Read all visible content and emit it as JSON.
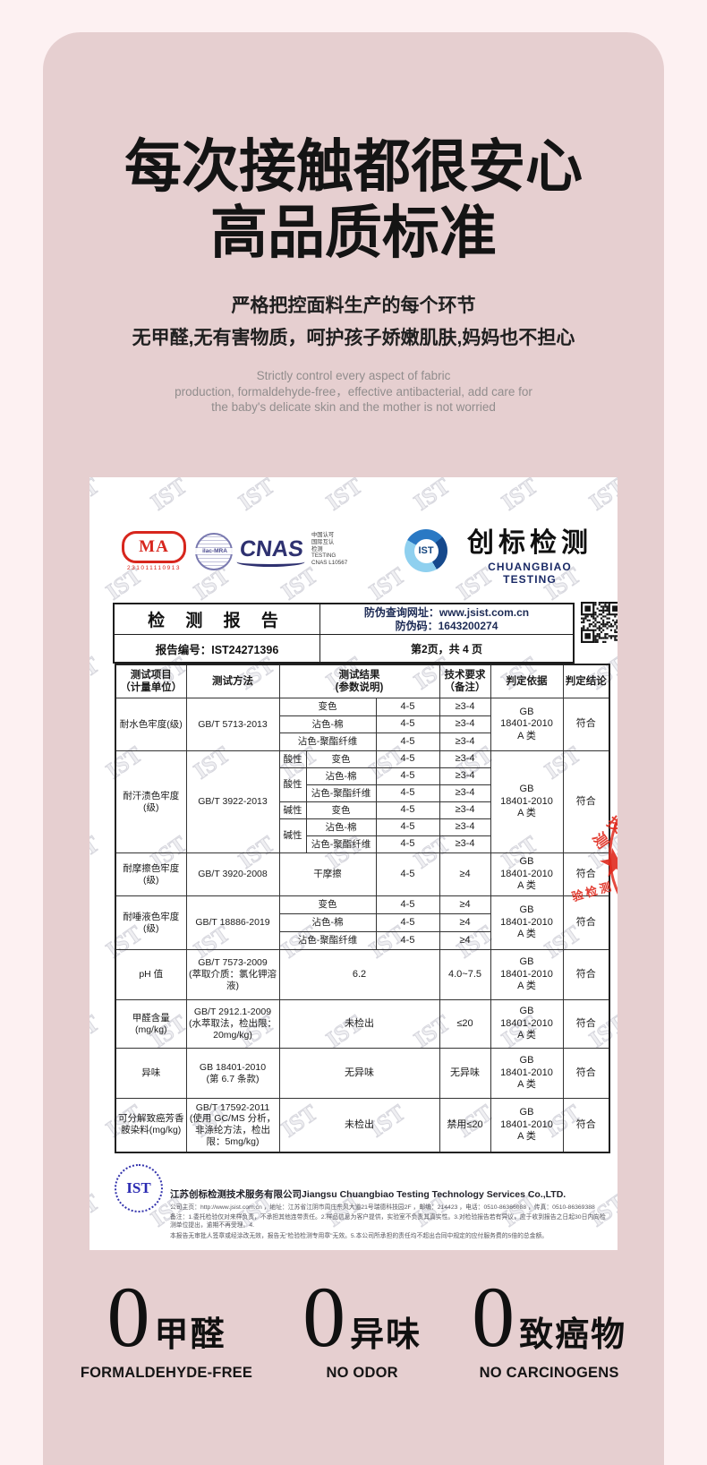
{
  "hero": {
    "title1": "每次接触都很安心",
    "title2": "高品质标准",
    "sub1": "严格把控面料生产的每个环节",
    "sub2": "无甲醛,无有害物质，呵护孩子娇嫩肌肤,妈妈也不担心",
    "en1": "Strictly control every aspect of fabric",
    "en2": "production, formaldehyde-free，effective antibacterial, add care for",
    "en3": "the baby's delicate skin and the mother is not worried"
  },
  "cert": {
    "logos": {
      "cma_label": "MA",
      "cma_number": "231011110913",
      "ilac_label": "ilac-MRA",
      "cnas_label": "CNAS",
      "cnas_side": "中国认可\n国际互认\n检测\nTESTING\nCNAS L10567",
      "ist_label": "IST",
      "brand_cn": "创标检测",
      "brand_en": "CHUANGBIAO TESTING"
    },
    "header_table": {
      "report_title": "检 测 报 告",
      "antifake_line1": "防伪查询网址：www.jsist.com.cn",
      "antifake_line2": "防伪码：1643200274",
      "report_no": "报告编号：IST24271396",
      "page_info": "第2页，共 4 页"
    },
    "table": {
      "h_item": "测试项目\n（计量单位）",
      "h_method": "测试方法",
      "h_result": "测试结果\n(参数说明)",
      "h_req": "技术要求\n（备注）",
      "h_basis": "判定依据",
      "h_concl": "判定结论",
      "basis_gb": "GB\n18401-2010\nA 类",
      "concl": "符合",
      "g0": {
        "item": "耐水色牢度(级)",
        "method": "GB/T 5713-2013",
        "rows": [
          {
            "p": "变色",
            "v": "4-5",
            "r": "≥3-4"
          },
          {
            "p": "沾色-棉",
            "v": "4-5",
            "r": "≥3-4"
          },
          {
            "p": "沾色-聚酯纤维",
            "v": "4-5",
            "r": "≥3-4"
          }
        ]
      },
      "g1": {
        "item": "耐汗渍色牢度\n(级)",
        "method": "GB/T 3922-2013",
        "acid": "酸性",
        "alkali": "碱性",
        "rows": [
          {
            "p": "变色",
            "v": "4-5",
            "r": "≥3-4"
          },
          {
            "p": "沾色-棉",
            "v": "4-5",
            "r": "≥3-4"
          },
          {
            "p": "沾色-聚酯纤维",
            "v": "4-5",
            "r": "≥3-4"
          },
          {
            "p": "变色",
            "v": "4-5",
            "r": "≥3-4"
          },
          {
            "p": "沾色-棉",
            "v": "4-5",
            "r": "≥3-4"
          },
          {
            "p": "沾色-聚酯纤维",
            "v": "4-5",
            "r": "≥3-4"
          }
        ]
      },
      "g2": {
        "item": "耐摩擦色牢度\n(级)",
        "method": "GB/T 3920-2008",
        "p": "干摩擦",
        "v": "4-5",
        "r": "≥4"
      },
      "g3": {
        "item": "耐唾液色牢度\n(级)",
        "method": "GB/T 18886-2019",
        "rows": [
          {
            "p": "变色",
            "v": "4-5",
            "r": "≥4"
          },
          {
            "p": "沾色-棉",
            "v": "4-5",
            "r": "≥4"
          },
          {
            "p": "沾色-聚酯纤维",
            "v": "4-5",
            "r": "≥4"
          }
        ]
      },
      "g4": {
        "item": "pH 值",
        "method": "GB/T 7573-2009\n(萃取介质：氯化钾溶\n液)",
        "v": "6.2",
        "r": "4.0~7.5"
      },
      "g5": {
        "item": "甲醛含量\n(mg/kg)",
        "method": "GB/T 2912.1-2009\n(水萃取法，检出限：\n20mg/kg)",
        "v": "未检出",
        "r": "≤20"
      },
      "g6": {
        "item": "异味",
        "method": "GB 18401-2010\n(第 6.7 条款)",
        "v": "无异味",
        "r": "无异味"
      },
      "g7": {
        "item": "可分解致癌芳香\n胺染料(mg/kg)",
        "method": "GB/T 17592-2011\n(使用 GC/MS 分析，\n非涤纶方法，检出\n限：5mg/kg)",
        "v": "未检出",
        "r": "禁用≤20"
      }
    },
    "stamp": {
      "arc_char1": "测",
      "arc_char2": "技",
      "star": "★",
      "inner_visible": "验检测"
    },
    "footer": {
      "ist_label": "IST",
      "company": "江苏创标检测技术服务有限公司Jiangsu Chuangbiao Testing Technology Services Co.,LTD.",
      "line1": "公司主页：http://www.jsist.com.cn ，地址：江苏省江阴市周庄东风大道21号瑞德科技园2F ，邮编：214423 ，电话：0510-86366088 ，传真：0510-86369388",
      "line2": "备注：1.委托检验仅对来样负责，不承担其他连带责任。2.样品信息为客户提供，实验室不负责其真实性。3.对检验报告若有异议，应于收到报告之日起30日内向检测单位提出，逾期不再受理。4.",
      "line3": "本报告无审批人签章或经涂改无效，报告无\"检验检测专用章\"无效。5.本公司所承担的责任均不超出合同中规定的应付服务费的5倍的总金额。"
    }
  },
  "zeros": {
    "items": [
      {
        "num": "0",
        "cn": "甲醛",
        "en": "FORMALDEHYDE-FREE"
      },
      {
        "num": "0",
        "cn": "异味",
        "en": "NO ODOR"
      },
      {
        "num": "0",
        "cn": "致癌物",
        "en": "NO CARCINOGENS"
      }
    ]
  },
  "colors": {
    "accent_red": "#d7261d",
    "navy": "#1a2a66",
    "stamp_red": "#e02a1e",
    "panel_pink": "#e6cfd0",
    "bg_pink": "#fdf1f2"
  }
}
